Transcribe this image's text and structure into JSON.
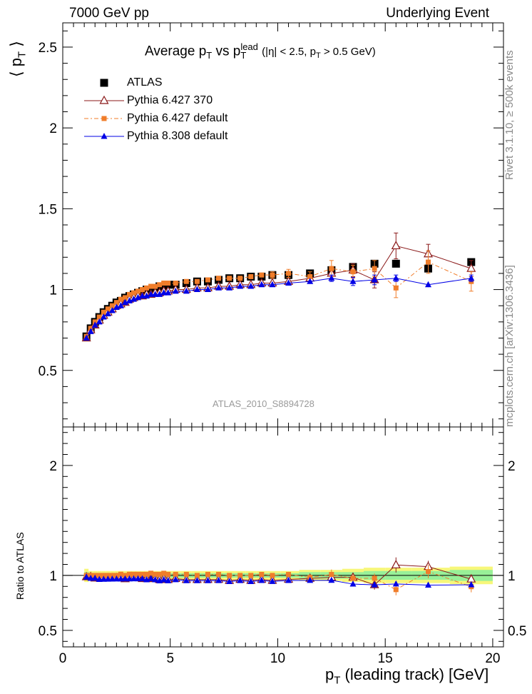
{
  "header": {
    "left": "7000 GeV pp",
    "right": "Underlying Event"
  },
  "side_texts": {
    "rivet": "Rivet 3.1.10, ≥ 500k events",
    "mcplots": "mcplots.cern.ch [arXiv:1306.3436]"
  },
  "watermark": "ATLAS_2010_S8894728",
  "colors": {
    "atlas": "#000000",
    "p6_370": "#8b1a1a",
    "p6_default": "#f07d2a",
    "p8_default": "#0000e6",
    "band_inner": "#98f098",
    "band_outer": "#f7f77a"
  },
  "chart_data": [
    {
      "type": "scatter",
      "panel": "main",
      "title": "Average p_T vs p_T^lead (|η| < 2.5, p_T > 0.5 GeV)",
      "ylabel": "⟨ p_T ⟩",
      "xlabel": "p_T (leading track) [GeV]",
      "xlim": [
        0,
        20.5
      ],
      "ylim": [
        0.15,
        2.65
      ],
      "yticks": [
        0.5,
        1,
        1.5,
        2,
        2.5
      ],
      "xticks": [
        0,
        5,
        10,
        15,
        20
      ],
      "legend": "top-left",
      "x": [
        1.1,
        1.3,
        1.5,
        1.7,
        1.9,
        2.1,
        2.3,
        2.5,
        2.7,
        2.9,
        3.1,
        3.3,
        3.5,
        3.7,
        3.9,
        4.1,
        4.3,
        4.5,
        4.7,
        4.9,
        5.25,
        5.75,
        6.25,
        6.75,
        7.25,
        7.75,
        8.25,
        8.75,
        9.25,
        9.75,
        10.5,
        11.5,
        12.5,
        13.5,
        14.5,
        15.5,
        17.0,
        19.0
      ],
      "series": [
        {
          "name": "ATLAS",
          "marker": "square",
          "values": [
            0.71,
            0.76,
            0.8,
            0.83,
            0.86,
            0.88,
            0.9,
            0.92,
            0.93,
            0.95,
            0.96,
            0.97,
            0.98,
            0.99,
            1.0,
            1.0,
            1.01,
            1.02,
            1.02,
            1.03,
            1.03,
            1.04,
            1.05,
            1.05,
            1.06,
            1.07,
            1.07,
            1.08,
            1.08,
            1.09,
            1.09,
            1.1,
            1.12,
            1.14,
            1.16,
            1.16,
            1.13,
            1.17
          ],
          "errors": [
            0.005,
            0.005,
            0.005,
            0.005,
            0.005,
            0.005,
            0.005,
            0.005,
            0.005,
            0.005,
            0.005,
            0.005,
            0.005,
            0.005,
            0.005,
            0.005,
            0.005,
            0.005,
            0.005,
            0.005,
            0.005,
            0.005,
            0.005,
            0.005,
            0.005,
            0.005,
            0.005,
            0.006,
            0.007,
            0.008,
            0.01,
            0.012,
            0.015,
            0.02,
            0.025,
            0.03,
            0.03,
            0.04
          ]
        },
        {
          "name": "Pythia 6.427 370",
          "marker": "open-triangle",
          "line": "solid",
          "values": [
            0.7,
            0.75,
            0.78,
            0.81,
            0.84,
            0.86,
            0.88,
            0.9,
            0.91,
            0.92,
            0.94,
            0.95,
            0.96,
            0.96,
            0.97,
            0.97,
            0.98,
            0.98,
            0.99,
            0.99,
            1.0,
            1.0,
            1.01,
            1.01,
            1.02,
            1.02,
            1.03,
            1.03,
            1.04,
            1.04,
            1.05,
            1.07,
            1.1,
            1.12,
            1.06,
            1.27,
            1.22,
            1.13
          ],
          "errors": [
            0.005,
            0.005,
            0.005,
            0.005,
            0.005,
            0.005,
            0.005,
            0.005,
            0.005,
            0.005,
            0.005,
            0.005,
            0.005,
            0.005,
            0.005,
            0.005,
            0.005,
            0.005,
            0.005,
            0.005,
            0.005,
            0.005,
            0.005,
            0.005,
            0.005,
            0.005,
            0.006,
            0.007,
            0.008,
            0.01,
            0.012,
            0.02,
            0.03,
            0.04,
            0.05,
            0.08,
            0.06,
            0.05
          ]
        },
        {
          "name": "Pythia 6.427 default",
          "marker": "filled-square-small",
          "line": "dash-dot",
          "values": [
            0.71,
            0.76,
            0.8,
            0.83,
            0.86,
            0.88,
            0.9,
            0.92,
            0.94,
            0.95,
            0.97,
            0.98,
            0.99,
            1.0,
            1.01,
            1.02,
            1.02,
            1.03,
            1.04,
            1.04,
            1.04,
            1.05,
            1.05,
            1.06,
            1.07,
            1.07,
            1.07,
            1.08,
            1.09,
            1.09,
            1.1,
            1.08,
            1.13,
            1.11,
            1.13,
            1.01,
            1.17,
            1.05
          ],
          "errors": [
            0.005,
            0.005,
            0.005,
            0.005,
            0.005,
            0.005,
            0.005,
            0.005,
            0.005,
            0.005,
            0.005,
            0.005,
            0.005,
            0.005,
            0.005,
            0.005,
            0.005,
            0.005,
            0.005,
            0.005,
            0.005,
            0.005,
            0.005,
            0.006,
            0.007,
            0.008,
            0.01,
            0.012,
            0.015,
            0.02,
            0.025,
            0.03,
            0.05,
            0.04,
            0.05,
            0.06,
            0.07,
            0.06
          ]
        },
        {
          "name": "Pythia 8.308 default",
          "marker": "filled-triangle",
          "line": "solid",
          "values": [
            0.7,
            0.74,
            0.78,
            0.8,
            0.83,
            0.85,
            0.87,
            0.89,
            0.9,
            0.92,
            0.93,
            0.94,
            0.95,
            0.96,
            0.96,
            0.97,
            0.97,
            0.97,
            0.98,
            0.98,
            0.99,
            0.99,
            1.0,
            1.0,
            1.01,
            1.01,
            1.02,
            1.02,
            1.03,
            1.03,
            1.04,
            1.05,
            1.07,
            1.05,
            1.06,
            1.07,
            1.03,
            1.07
          ],
          "errors": [
            0.005,
            0.005,
            0.005,
            0.005,
            0.005,
            0.005,
            0.005,
            0.005,
            0.005,
            0.005,
            0.005,
            0.005,
            0.005,
            0.005,
            0.005,
            0.005,
            0.005,
            0.005,
            0.005,
            0.005,
            0.005,
            0.005,
            0.005,
            0.005,
            0.005,
            0.005,
            0.006,
            0.007,
            0.008,
            0.01,
            0.012,
            0.015,
            0.02,
            0.025,
            0.03,
            0.02,
            0.015,
            0.02
          ]
        }
      ]
    },
    {
      "type": "scatter",
      "panel": "ratio",
      "ylabel": "Ratio to ATLAS",
      "xlabel": "p_T (leading track) [GeV]",
      "xlim": [
        0,
        20.5
      ],
      "ylim": [
        0.35,
        2.35
      ],
      "yticks": [
        0.5,
        1,
        2
      ],
      "xticks": [
        0,
        5,
        10,
        15,
        20
      ],
      "band_inner_halfwidth": [
        0.03,
        0.02,
        0.02,
        0.02,
        0.02,
        0.02,
        0.02,
        0.02,
        0.02,
        0.02,
        0.02,
        0.02,
        0.02,
        0.02,
        0.02,
        0.02,
        0.02,
        0.02,
        0.02,
        0.02,
        0.02,
        0.02,
        0.02,
        0.02,
        0.02,
        0.02,
        0.02,
        0.02,
        0.02,
        0.02,
        0.02,
        0.03,
        0.03,
        0.03,
        0.04,
        0.04,
        0.04,
        0.05
      ],
      "band_outer_halfwidth": [
        0.06,
        0.04,
        0.04,
        0.04,
        0.04,
        0.04,
        0.04,
        0.04,
        0.04,
        0.04,
        0.04,
        0.04,
        0.04,
        0.04,
        0.04,
        0.04,
        0.04,
        0.04,
        0.04,
        0.04,
        0.04,
        0.04,
        0.04,
        0.04,
        0.04,
        0.04,
        0.04,
        0.04,
        0.04,
        0.04,
        0.04,
        0.05,
        0.05,
        0.06,
        0.07,
        0.07,
        0.07,
        0.08
      ]
    }
  ]
}
